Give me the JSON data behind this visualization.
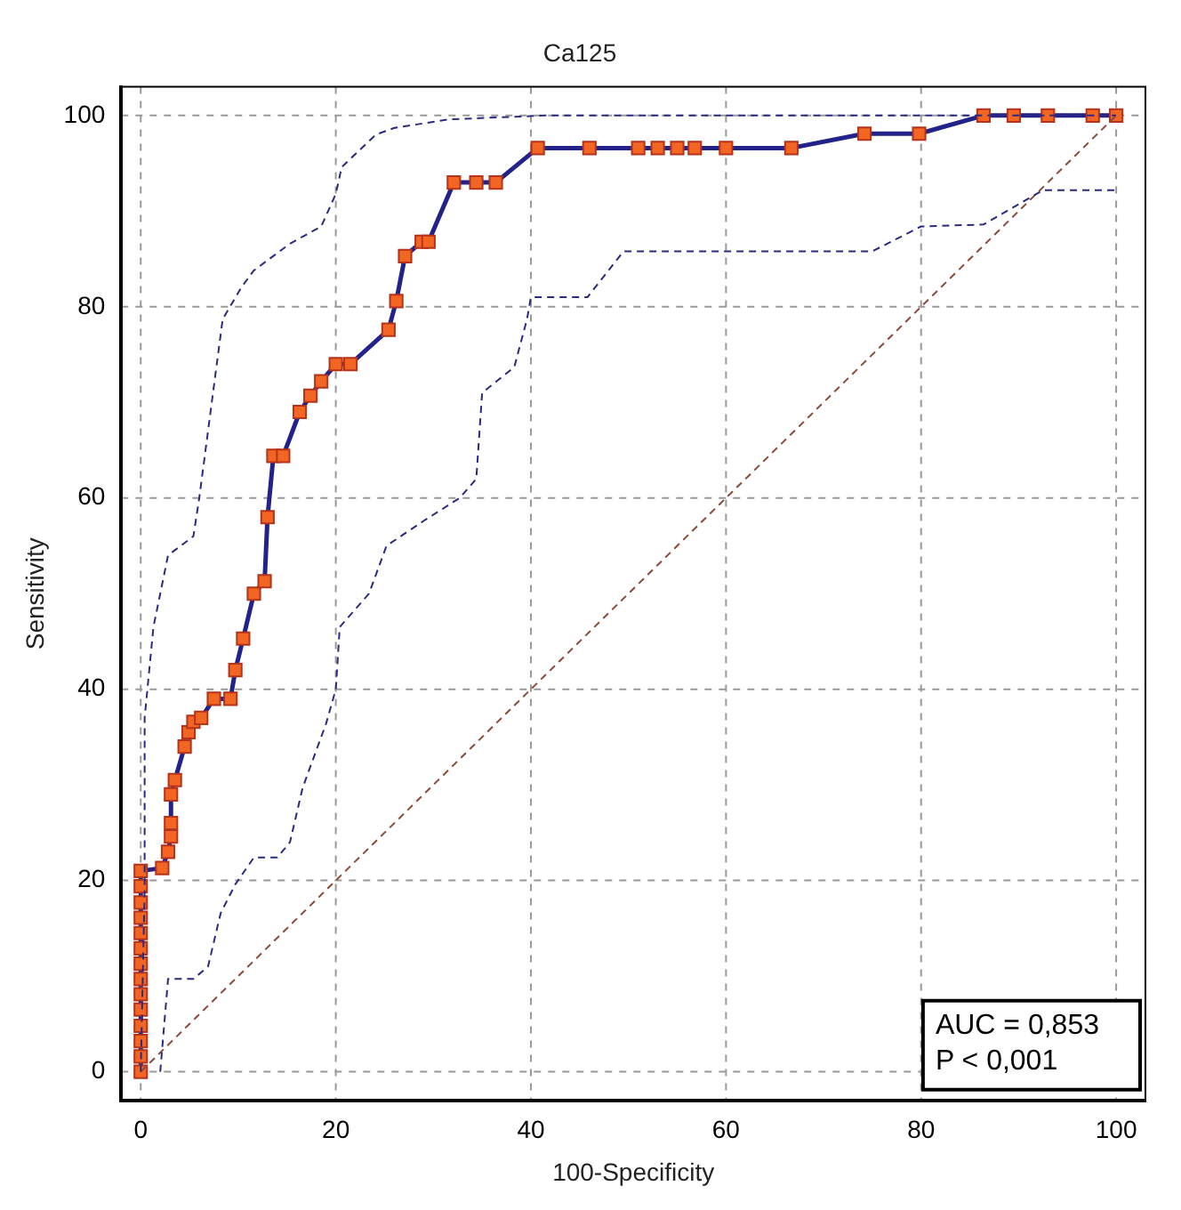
{
  "chart_data": {
    "type": "line",
    "title": "Ca125",
    "xlabel": "100-Specificity",
    "ylabel": "Sensitivity",
    "xlim": [
      -2,
      103
    ],
    "ylim": [
      -3,
      103
    ],
    "xticks": [
      0,
      20,
      40,
      60,
      80,
      100
    ],
    "yticks": [
      0,
      20,
      40,
      60,
      80,
      100
    ],
    "grid": true,
    "legend": false,
    "annotations": [
      "AUC = 0,853",
      "P < 0,001"
    ],
    "series": [
      {
        "color": "#2a2a80",
        "line_style": "dashed",
        "marker": "none",
        "x": [
          0,
          0.4,
          0.4,
          1.3,
          2.8,
          5.4,
          6,
          8.4,
          10.3,
          11.6,
          15.3,
          18.5,
          20,
          20.6,
          24.1,
          26,
          31.6,
          41.5,
          100
        ],
        "values": [
          0,
          19,
          37,
          46.5,
          54,
          56,
          60,
          78.7,
          82,
          83.8,
          86.6,
          88.4,
          91.8,
          94.6,
          98,
          98.7,
          99.6,
          100,
          100
        ]
      },
      {
        "color": "#2a2a80",
        "line_style": "dashed",
        "marker": "none",
        "x": [
          2,
          2.8,
          5.4,
          6.9,
          8.2,
          9.7,
          11.6,
          14,
          15.3,
          16.6,
          19,
          20,
          20.4,
          23.4,
          25.2,
          29,
          32.7,
          34.4,
          35,
          38.3,
          39.6,
          40,
          45.8,
          49.5,
          75,
          80,
          86.4,
          92.5,
          100
        ],
        "values": [
          0,
          9.7,
          9.7,
          11,
          16.6,
          19.6,
          22.4,
          22.4,
          24,
          29.7,
          36.4,
          40,
          46.5,
          50,
          55,
          57.6,
          60,
          62,
          71,
          73.7,
          78.7,
          81,
          81,
          85.8,
          85.8,
          88.4,
          88.6,
          92.2,
          92.2
        ]
      },
      {
        "color": "#8b4a3a",
        "line_style": "dashed",
        "marker": "none",
        "x": [
          0,
          100
        ],
        "values": [
          0,
          100
        ]
      },
      {
        "color": "#f26522",
        "line_style": "solid",
        "marker": "square",
        "x": [
          0,
          0,
          0,
          0,
          0,
          0,
          0,
          0,
          0,
          0,
          0,
          0,
          0,
          0,
          2.2,
          2.8,
          3.1,
          3.1,
          3.1,
          3.5,
          4.5,
          4.9,
          5.4,
          6.2,
          7.5,
          9.2,
          9.7,
          10.5,
          11.6,
          12.7,
          13,
          13.6,
          14.6,
          16.3,
          17.4,
          18.5,
          20,
          21.5,
          25.4,
          26.2,
          27.1,
          28.8,
          29.5,
          32.1,
          34.4,
          36.4,
          40.7,
          46,
          51,
          53,
          55,
          56.8,
          60,
          66.7,
          74.2,
          79.8,
          86.4,
          89.5,
          93,
          97.6,
          100
        ],
        "values": [
          0,
          1.6,
          3.2,
          4.8,
          6.5,
          8.1,
          9.7,
          11.3,
          12.9,
          14.5,
          16.1,
          17.7,
          19.4,
          21,
          21.3,
          23,
          24.6,
          26,
          29,
          30.5,
          34,
          35.5,
          36.6,
          37,
          39,
          39,
          42,
          45.3,
          50,
          51.3,
          58,
          64.4,
          64.4,
          69,
          70.7,
          72.2,
          74,
          74,
          77.6,
          80.6,
          85.3,
          86.8,
          86.8,
          93,
          93,
          93,
          96.6,
          96.6,
          96.6,
          96.6,
          96.6,
          96.6,
          96.6,
          96.6,
          98.1,
          98.1,
          100,
          100,
          100,
          100,
          100
        ]
      }
    ]
  }
}
